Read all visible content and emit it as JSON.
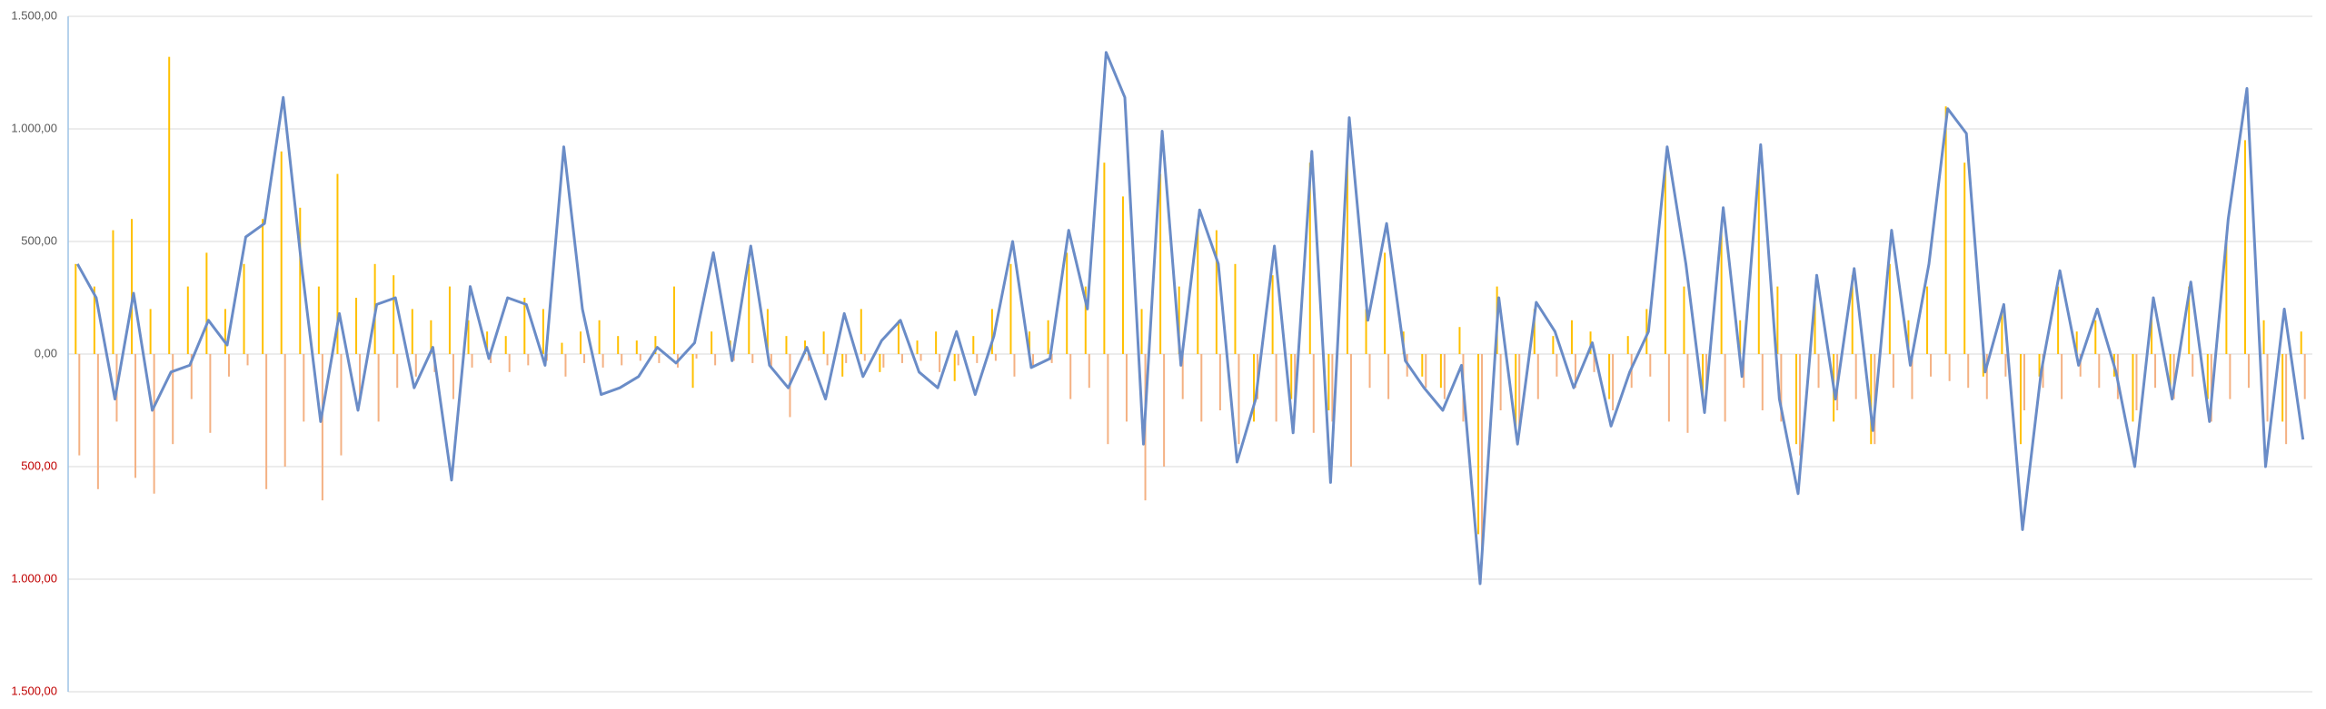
{
  "chart_data": {
    "type": "bar",
    "ylim": [
      -1500,
      1500
    ],
    "yticks": [
      {
        "value": 1500,
        "label": "1.500,00"
      },
      {
        "value": 1000,
        "label": "1.000,00"
      },
      {
        "value": 500,
        "label": "500,00"
      },
      {
        "value": 0,
        "label": "0,00"
      },
      {
        "value": -500,
        "label": "500,00"
      },
      {
        "value": -1000,
        "label": "1.000,00"
      },
      {
        "value": -1500,
        "label": "1.500,00"
      }
    ],
    "grid": true,
    "tick_color": "#595959",
    "negative_tick_color": "#c00000",
    "categories": [
      null,
      null,
      null,
      null,
      null,
      null,
      null,
      null,
      null,
      null,
      null,
      null,
      null,
      null,
      null,
      null,
      null,
      null,
      null,
      null,
      null,
      null,
      null,
      null,
      null,
      null,
      null,
      null,
      null,
      null,
      null,
      null,
      null,
      null,
      null,
      null,
      null,
      null,
      null,
      null,
      null,
      null,
      null,
      null,
      null,
      null,
      null,
      null,
      null,
      null,
      null,
      null,
      null,
      null,
      null,
      null,
      null,
      null,
      null,
      null,
      null,
      null,
      null,
      null,
      null,
      null,
      null,
      null,
      null,
      null,
      null,
      null,
      null,
      null,
      null,
      null,
      null,
      null,
      null,
      null,
      null,
      null,
      null,
      null,
      null,
      null,
      null,
      null,
      null,
      null,
      null,
      null,
      null,
      null,
      null,
      null,
      null,
      null,
      null,
      null,
      null,
      null,
      null,
      null,
      null,
      null,
      null,
      null,
      null,
      null,
      null,
      null,
      null,
      null,
      null,
      null,
      null,
      null,
      null,
      null
    ],
    "series": [
      {
        "type": "bar",
        "color": "#ffc000",
        "values": [
          400,
          300,
          550,
          600,
          200,
          1320,
          300,
          450,
          200,
          400,
          600,
          900,
          650,
          300,
          800,
          250,
          400,
          350,
          200,
          150,
          300,
          150,
          100,
          80,
          250,
          200,
          50,
          100,
          150,
          80,
          60,
          80,
          300,
          -150,
          100,
          60,
          400,
          200,
          80,
          60,
          100,
          -100,
          200,
          -80,
          150,
          60,
          100,
          -120,
          80,
          200,
          400,
          100,
          150,
          450,
          300,
          850,
          700,
          200,
          800,
          300,
          600,
          550,
          400,
          -300,
          350,
          -200,
          850,
          -250,
          850,
          200,
          450,
          100,
          -100,
          -150,
          120,
          -800,
          300,
          -350,
          200,
          80,
          150,
          100,
          -200,
          80,
          200,
          850,
          300,
          -200,
          550,
          150,
          850,
          300,
          -400,
          250,
          -300,
          350,
          -400,
          400,
          150,
          300,
          1100,
          850,
          -100,
          200,
          -400,
          -100,
          300,
          100,
          150,
          -100,
          -300,
          200,
          -150,
          300,
          -200,
          500,
          950,
          150,
          -300,
          100
        ]
      },
      {
        "type": "bar",
        "color": "#f4b183",
        "values": [
          -450,
          -600,
          -300,
          -550,
          -620,
          -400,
          -200,
          -350,
          -100,
          -50,
          -600,
          -500,
          -300,
          -650,
          -450,
          -200,
          -300,
          -150,
          -100,
          -80,
          -200,
          -60,
          -40,
          -80,
          -50,
          -30,
          -100,
          -40,
          -60,
          -50,
          -30,
          -40,
          -60,
          -20,
          -50,
          -30,
          -40,
          -60,
          -280,
          -30,
          -50,
          -40,
          -30,
          -60,
          -40,
          -30,
          -80,
          -50,
          -40,
          -30,
          -100,
          -60,
          -40,
          -200,
          -150,
          -400,
          -300,
          -650,
          -500,
          -200,
          -300,
          -250,
          -400,
          -200,
          -300,
          -250,
          -350,
          -300,
          -500,
          -150,
          -200,
          -100,
          -150,
          -200,
          -300,
          -900,
          -250,
          -350,
          -200,
          -100,
          -150,
          -80,
          -250,
          -150,
          -100,
          -300,
          -350,
          -200,
          -300,
          -150,
          -250,
          -300,
          -450,
          -150,
          -250,
          -200,
          -400,
          -150,
          -200,
          -100,
          -120,
          -150,
          -200,
          -100,
          -250,
          -150,
          -200,
          -100,
          -150,
          -200,
          -250,
          -150,
          -200,
          -100,
          -300,
          -200,
          -150,
          -300,
          -400,
          -200
        ]
      },
      {
        "type": "line",
        "color": "#6a8cc7",
        "values": [
          400,
          250,
          -200,
          270,
          -250,
          -80,
          -50,
          150,
          40,
          520,
          580,
          1140,
          380,
          -300,
          180,
          -250,
          220,
          250,
          -150,
          30,
          -560,
          300,
          -20,
          250,
          220,
          -50,
          920,
          200,
          -180,
          -150,
          -100,
          30,
          -40,
          50,
          450,
          -30,
          480,
          -50,
          -150,
          30,
          -200,
          180,
          -100,
          60,
          150,
          -80,
          -150,
          100,
          -180,
          80,
          500,
          -60,
          -20,
          550,
          200,
          1340,
          1140,
          -400,
          990,
          -50,
          640,
          400,
          -480,
          -200,
          480,
          -350,
          900,
          -570,
          1050,
          150,
          580,
          -30,
          -150,
          -250,
          -50,
          -1020,
          250,
          -400,
          230,
          100,
          -150,
          50,
          -320,
          -80,
          100,
          920,
          400,
          -260,
          650,
          -100,
          930,
          -200,
          -620,
          350,
          -200,
          380,
          -340,
          550,
          -50,
          400,
          1090,
          980,
          -80,
          220,
          -780,
          -80,
          370,
          -50,
          200,
          -80,
          -500,
          250,
          -200,
          320,
          -300,
          600,
          1180,
          -500,
          200,
          -380
        ]
      }
    ]
  }
}
